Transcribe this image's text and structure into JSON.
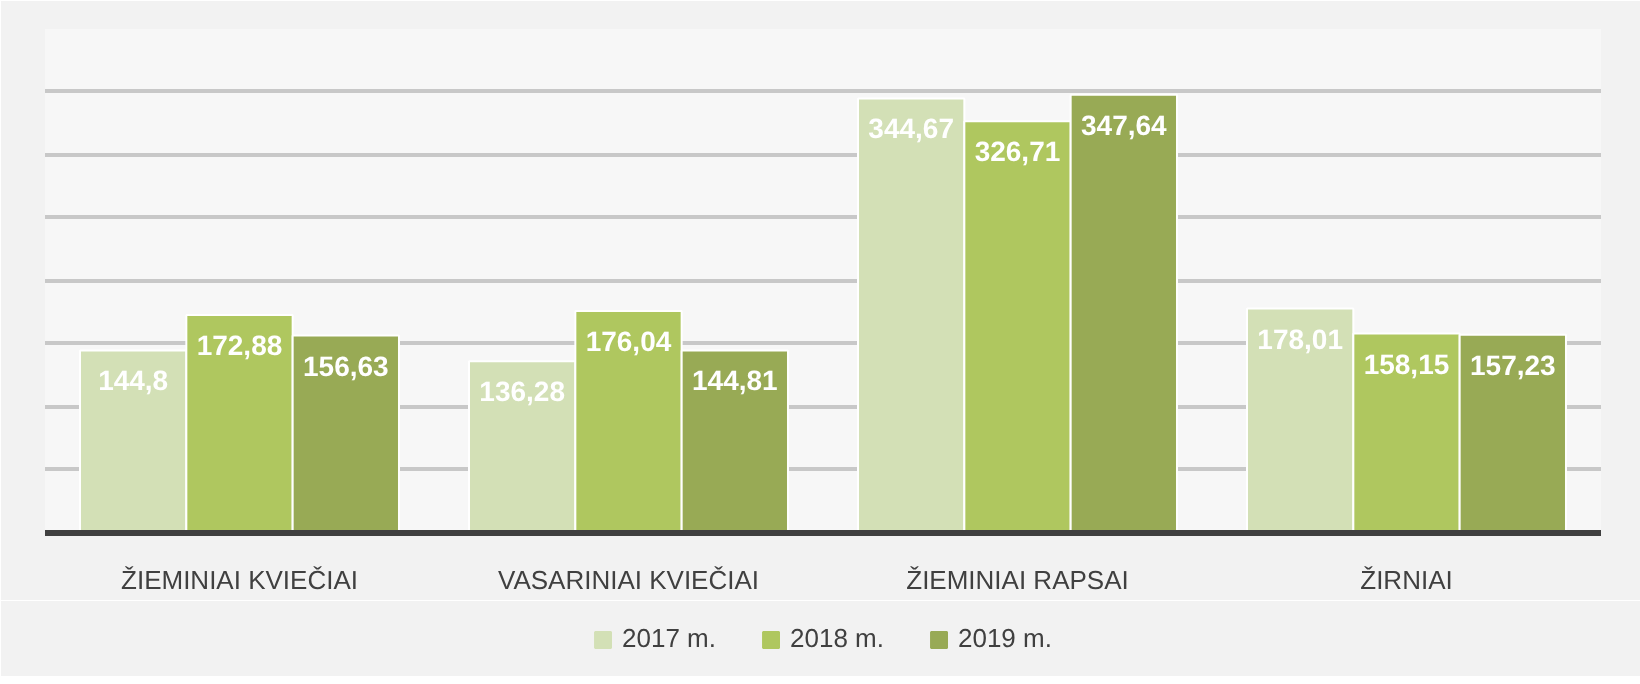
{
  "chart_data": {
    "type": "bar",
    "categories": [
      "ŽIEMINIAI KVIEČIAI",
      "VASARINIAI KVIEČIAI",
      "ŽIEMINIAI RAPSAI",
      "ŽIRNIAI"
    ],
    "series": [
      {
        "name": "2017 m.",
        "color": "#d3e0b6",
        "values": [
          144.8,
          136.28,
          344.67,
          178.01
        ],
        "value_labels": [
          "144,8",
          "136,28",
          "344,67",
          "178,01"
        ]
      },
      {
        "name": "2018 m.",
        "color": "#afc75f",
        "values": [
          172.88,
          176.04,
          326.71,
          158.15
        ],
        "value_labels": [
          "172,88",
          "176,04",
          "326,71",
          "158,15"
        ]
      },
      {
        "name": "2019 m.",
        "color": "#98aa55",
        "values": [
          156.63,
          144.81,
          347.64,
          157.23
        ],
        "value_labels": [
          "156,63",
          "144,81",
          "347,64",
          "157,23"
        ]
      }
    ],
    "tick_labels": "x",
    "grid": "y",
    "legend": "bottom"
  }
}
